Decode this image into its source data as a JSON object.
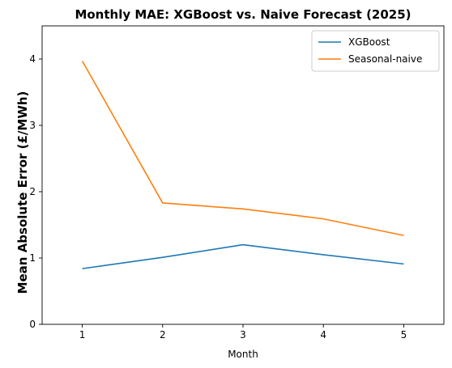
{
  "chart_data": {
    "type": "line",
    "title": "Monthly MAE: XGBoost vs. Naive Forecast (2025)",
    "xlabel": "Month",
    "ylabel": "Mean Absolute Error (£/MWh)",
    "x": [
      1,
      2,
      3,
      4,
      5
    ],
    "xlim": [
      0.5,
      5.5
    ],
    "ylim": [
      0,
      4.5
    ],
    "xticks": [
      1,
      2,
      3,
      4,
      5
    ],
    "yticks": [
      0,
      1,
      2,
      3,
      4
    ],
    "grid": false,
    "legend_position": "top-right",
    "series": [
      {
        "name": "XGBoost",
        "color": "#1f77b4",
        "values": [
          0.84,
          1.01,
          1.2,
          1.05,
          0.91
        ]
      },
      {
        "name": "Seasonal-naive",
        "color": "#ff7f0e",
        "values": [
          3.97,
          1.83,
          1.74,
          1.59,
          1.34
        ]
      }
    ]
  }
}
